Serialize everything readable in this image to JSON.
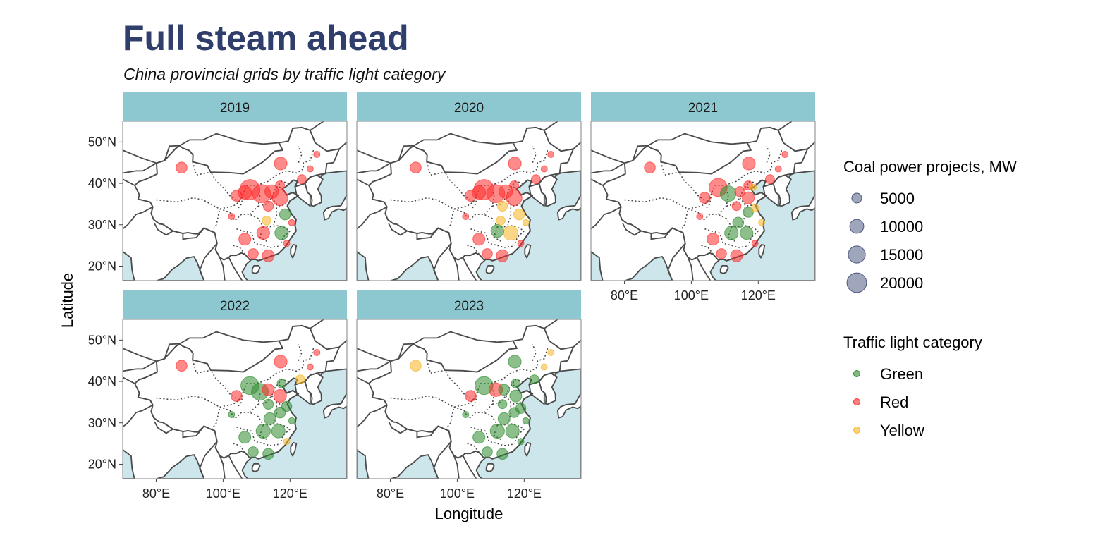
{
  "title": "Full steam ahead",
  "subtitle": "China provincial grids by traffic light category",
  "colors": {
    "title": "#2f3e6b",
    "strip": "#8dc8d0",
    "sea": "#cce6eb",
    "land": "#ffffff",
    "border": "#4a4a4a",
    "size_legend_fill": "#5f6b8f",
    "Green": "#2e8b2e",
    "Red": "#ff2a2a",
    "Yellow": "#f5b522"
  },
  "axes": {
    "x_title": "Longitude",
    "y_title": "Latitude",
    "x_ticks": [
      {
        "value": 80,
        "label": "80°E"
      },
      {
        "value": 100,
        "label": "100°E"
      },
      {
        "value": 120,
        "label": "120°E"
      }
    ],
    "y_ticks": [
      {
        "value": 50,
        "label": "50°N"
      },
      {
        "value": 40,
        "label": "40°N"
      },
      {
        "value": 30,
        "label": "30°N"
      },
      {
        "value": 20,
        "label": "20°N"
      }
    ],
    "xlim": [
      70,
      137
    ],
    "ylim": [
      16.5,
      55
    ]
  },
  "legends": {
    "size": {
      "title": "Coal power projects, MW",
      "entries": [
        {
          "label": "5000",
          "value": 5000
        },
        {
          "label": "10000",
          "value": 10000
        },
        {
          "label": "15000",
          "value": 15000
        },
        {
          "label": "20000",
          "value": 20000
        }
      ]
    },
    "category": {
      "title": "Traffic light category",
      "entries": [
        {
          "label": "Green",
          "key": "Green"
        },
        {
          "label": "Red",
          "key": "Red"
        },
        {
          "label": "Yellow",
          "key": "Yellow"
        }
      ]
    }
  },
  "chart_data": {
    "type": "scatter",
    "subtype": "faceted bubble map",
    "facets": [
      {
        "label": "2019",
        "points": [
          {
            "lon": 87.6,
            "lat": 43.8,
            "mw": 6000,
            "cat": "Red"
          },
          {
            "lon": 108.0,
            "lat": 38.5,
            "mw": 20000,
            "cat": "Red"
          },
          {
            "lon": 111.5,
            "lat": 37.5,
            "mw": 16000,
            "cat": "Red"
          },
          {
            "lon": 104.0,
            "lat": 37.0,
            "mw": 6000,
            "cat": "Red"
          },
          {
            "lon": 106.5,
            "lat": 37.8,
            "mw": 9000,
            "cat": "Red"
          },
          {
            "lon": 114.5,
            "lat": 38.0,
            "mw": 9000,
            "cat": "Red"
          },
          {
            "lon": 117.0,
            "lat": 36.5,
            "mw": 12000,
            "cat": "Red"
          },
          {
            "lon": 118.5,
            "lat": 32.5,
            "mw": 6000,
            "cat": "Green"
          },
          {
            "lon": 113.5,
            "lat": 34.5,
            "mw": 5000,
            "cat": "Red"
          },
          {
            "lon": 117.2,
            "lat": 44.8,
            "mw": 8000,
            "cat": "Red"
          },
          {
            "lon": 117.0,
            "lat": 39.5,
            "mw": 4000,
            "cat": "Red"
          },
          {
            "lon": 123.5,
            "lat": 41.0,
            "mw": 4000,
            "cat": "Red"
          },
          {
            "lon": 126.0,
            "lat": 43.5,
            "mw": 2000,
            "cat": "Red"
          },
          {
            "lon": 128.0,
            "lat": 47.0,
            "mw": 2000,
            "cat": "Red"
          },
          {
            "lon": 120.5,
            "lat": 30.5,
            "mw": 2000,
            "cat": "Red"
          },
          {
            "lon": 113.0,
            "lat": 31.0,
            "mw": 4000,
            "cat": "Yellow"
          },
          {
            "lon": 117.5,
            "lat": 28.0,
            "mw": 9000,
            "cat": "Green"
          },
          {
            "lon": 112.0,
            "lat": 28.0,
            "mw": 8000,
            "cat": "Red"
          },
          {
            "lon": 102.5,
            "lat": 32.0,
            "mw": 2000,
            "cat": "Red"
          },
          {
            "lon": 106.5,
            "lat": 26.5,
            "mw": 7000,
            "cat": "Red"
          },
          {
            "lon": 109.0,
            "lat": 23.0,
            "mw": 5000,
            "cat": "Red"
          },
          {
            "lon": 113.5,
            "lat": 22.5,
            "mw": 7000,
            "cat": "Red"
          },
          {
            "lon": 119.0,
            "lat": 25.5,
            "mw": 2000,
            "cat": "Red"
          }
        ]
      },
      {
        "label": "2020",
        "points": [
          {
            "lon": 87.6,
            "lat": 43.8,
            "mw": 6000,
            "cat": "Red"
          },
          {
            "lon": 108.0,
            "lat": 38.5,
            "mw": 20000,
            "cat": "Red"
          },
          {
            "lon": 111.5,
            "lat": 37.5,
            "mw": 16000,
            "cat": "Red"
          },
          {
            "lon": 104.0,
            "lat": 37.0,
            "mw": 6000,
            "cat": "Red"
          },
          {
            "lon": 106.5,
            "lat": 37.8,
            "mw": 9000,
            "cat": "Red"
          },
          {
            "lon": 114.5,
            "lat": 38.0,
            "mw": 9000,
            "cat": "Red"
          },
          {
            "lon": 117.0,
            "lat": 36.5,
            "mw": 12000,
            "cat": "Red"
          },
          {
            "lon": 118.5,
            "lat": 32.5,
            "mw": 6000,
            "cat": "Yellow"
          },
          {
            "lon": 113.5,
            "lat": 34.5,
            "mw": 5000,
            "cat": "Yellow"
          },
          {
            "lon": 117.2,
            "lat": 44.8,
            "mw": 8000,
            "cat": "Red"
          },
          {
            "lon": 117.0,
            "lat": 39.5,
            "mw": 4000,
            "cat": "Red"
          },
          {
            "lon": 123.5,
            "lat": 41.0,
            "mw": 4000,
            "cat": "Red"
          },
          {
            "lon": 126.0,
            "lat": 43.5,
            "mw": 2000,
            "cat": "Red"
          },
          {
            "lon": 128.0,
            "lat": 47.0,
            "mw": 2000,
            "cat": "Red"
          },
          {
            "lon": 120.5,
            "lat": 30.5,
            "mw": 2000,
            "cat": "Yellow"
          },
          {
            "lon": 113.0,
            "lat": 31.0,
            "mw": 4000,
            "cat": "Yellow"
          },
          {
            "lon": 116.0,
            "lat": 28.0,
            "mw": 10000,
            "cat": "Yellow"
          },
          {
            "lon": 112.0,
            "lat": 28.5,
            "mw": 8000,
            "cat": "Green"
          },
          {
            "lon": 102.5,
            "lat": 32.0,
            "mw": 2000,
            "cat": "Red"
          },
          {
            "lon": 106.5,
            "lat": 26.5,
            "mw": 7000,
            "cat": "Red"
          },
          {
            "lon": 109.0,
            "lat": 23.0,
            "mw": 5000,
            "cat": "Red"
          },
          {
            "lon": 113.5,
            "lat": 22.5,
            "mw": 7000,
            "cat": "Red"
          },
          {
            "lon": 119.0,
            "lat": 25.5,
            "mw": 2000,
            "cat": "Red"
          }
        ]
      },
      {
        "label": "2021",
        "points": [
          {
            "lon": 87.6,
            "lat": 43.8,
            "mw": 6000,
            "cat": "Red"
          },
          {
            "lon": 108.0,
            "lat": 39.0,
            "mw": 16000,
            "cat": "Red"
          },
          {
            "lon": 111.0,
            "lat": 37.5,
            "mw": 12000,
            "cat": "Green"
          },
          {
            "lon": 104.0,
            "lat": 36.5,
            "mw": 6000,
            "cat": "Red"
          },
          {
            "lon": 114.5,
            "lat": 38.0,
            "mw": 5000,
            "cat": "Red"
          },
          {
            "lon": 117.0,
            "lat": 36.5,
            "mw": 7000,
            "cat": "Red"
          },
          {
            "lon": 119.0,
            "lat": 34.0,
            "mw": 3000,
            "cat": "Yellow"
          },
          {
            "lon": 117.0,
            "lat": 33.0,
            "mw": 5000,
            "cat": "Green"
          },
          {
            "lon": 113.5,
            "lat": 34.5,
            "mw": 4000,
            "cat": "Red"
          },
          {
            "lon": 117.2,
            "lat": 44.8,
            "mw": 8000,
            "cat": "Red"
          },
          {
            "lon": 117.0,
            "lat": 39.5,
            "mw": 4000,
            "cat": "Red"
          },
          {
            "lon": 118.5,
            "lat": 39.0,
            "mw": 2000,
            "cat": "Yellow"
          },
          {
            "lon": 123.5,
            "lat": 41.0,
            "mw": 4000,
            "cat": "Red"
          },
          {
            "lon": 126.0,
            "lat": 43.5,
            "mw": 2000,
            "cat": "Red"
          },
          {
            "lon": 128.0,
            "lat": 47.0,
            "mw": 2000,
            "cat": "Red"
          },
          {
            "lon": 121.0,
            "lat": 30.5,
            "mw": 2000,
            "cat": "Yellow"
          },
          {
            "lon": 114.0,
            "lat": 30.5,
            "mw": 6000,
            "cat": "Green"
          },
          {
            "lon": 112.0,
            "lat": 28.0,
            "mw": 9000,
            "cat": "Green"
          },
          {
            "lon": 116.5,
            "lat": 28.0,
            "mw": 8000,
            "cat": "Green"
          },
          {
            "lon": 102.5,
            "lat": 32.0,
            "mw": 2000,
            "cat": "Red"
          },
          {
            "lon": 106.5,
            "lat": 26.5,
            "mw": 7000,
            "cat": "Red"
          },
          {
            "lon": 109.0,
            "lat": 23.0,
            "mw": 5000,
            "cat": "Red"
          },
          {
            "lon": 113.5,
            "lat": 22.5,
            "mw": 7000,
            "cat": "Red"
          },
          {
            "lon": 119.0,
            "lat": 25.5,
            "mw": 2000,
            "cat": "Red"
          }
        ]
      },
      {
        "label": "2022",
        "points": [
          {
            "lon": 87.6,
            "lat": 43.8,
            "mw": 6000,
            "cat": "Red"
          },
          {
            "lon": 108.0,
            "lat": 39.0,
            "mw": 16000,
            "cat": "Green"
          },
          {
            "lon": 111.0,
            "lat": 37.5,
            "mw": 14000,
            "cat": "Green"
          },
          {
            "lon": 104.0,
            "lat": 36.5,
            "mw": 6000,
            "cat": "Red"
          },
          {
            "lon": 113.5,
            "lat": 38.0,
            "mw": 7000,
            "cat": "Red"
          },
          {
            "lon": 117.0,
            "lat": 36.5,
            "mw": 8000,
            "cat": "Red"
          },
          {
            "lon": 119.0,
            "lat": 34.0,
            "mw": 5000,
            "cat": "Green"
          },
          {
            "lon": 117.0,
            "lat": 32.5,
            "mw": 6000,
            "cat": "Green"
          },
          {
            "lon": 113.5,
            "lat": 34.5,
            "mw": 5000,
            "cat": "Green"
          },
          {
            "lon": 117.2,
            "lat": 44.8,
            "mw": 8000,
            "cat": "Red"
          },
          {
            "lon": 117.5,
            "lat": 39.5,
            "mw": 4000,
            "cat": "Green"
          },
          {
            "lon": 123.0,
            "lat": 40.5,
            "mw": 4000,
            "cat": "Yellow"
          },
          {
            "lon": 126.0,
            "lat": 43.5,
            "mw": 2000,
            "cat": "Red"
          },
          {
            "lon": 128.0,
            "lat": 47.0,
            "mw": 2000,
            "cat": "Red"
          },
          {
            "lon": 120.5,
            "lat": 30.5,
            "mw": 2000,
            "cat": "Green"
          },
          {
            "lon": 114.0,
            "lat": 31.0,
            "mw": 7000,
            "cat": "Green"
          },
          {
            "lon": 112.0,
            "lat": 28.0,
            "mw": 10000,
            "cat": "Green"
          },
          {
            "lon": 116.5,
            "lat": 28.0,
            "mw": 9000,
            "cat": "Green"
          },
          {
            "lon": 102.5,
            "lat": 32.0,
            "mw": 2000,
            "cat": "Green"
          },
          {
            "lon": 106.5,
            "lat": 26.5,
            "mw": 7000,
            "cat": "Green"
          },
          {
            "lon": 109.0,
            "lat": 23.0,
            "mw": 5000,
            "cat": "Green"
          },
          {
            "lon": 113.5,
            "lat": 22.5,
            "mw": 6000,
            "cat": "Green"
          },
          {
            "lon": 119.0,
            "lat": 25.5,
            "mw": 2000,
            "cat": "Yellow"
          }
        ]
      },
      {
        "label": "2023",
        "points": [
          {
            "lon": 87.6,
            "lat": 43.8,
            "mw": 6000,
            "cat": "Yellow"
          },
          {
            "lon": 108.0,
            "lat": 39.0,
            "mw": 16000,
            "cat": "Green"
          },
          {
            "lon": 111.5,
            "lat": 38.0,
            "mw": 9000,
            "cat": "Red"
          },
          {
            "lon": 104.0,
            "lat": 36.5,
            "mw": 6000,
            "cat": "Red"
          },
          {
            "lon": 114.0,
            "lat": 38.0,
            "mw": 6000,
            "cat": "Green"
          },
          {
            "lon": 117.5,
            "lat": 36.5,
            "mw": 7000,
            "cat": "Green"
          },
          {
            "lon": 119.0,
            "lat": 33.5,
            "mw": 5000,
            "cat": "Green"
          },
          {
            "lon": 117.0,
            "lat": 32.5,
            "mw": 5000,
            "cat": "Green"
          },
          {
            "lon": 113.5,
            "lat": 34.5,
            "mw": 4000,
            "cat": "Green"
          },
          {
            "lon": 117.2,
            "lat": 44.8,
            "mw": 8000,
            "cat": "Green"
          },
          {
            "lon": 117.5,
            "lat": 39.5,
            "mw": 4000,
            "cat": "Green"
          },
          {
            "lon": 123.0,
            "lat": 40.5,
            "mw": 4000,
            "cat": "Green"
          },
          {
            "lon": 126.0,
            "lat": 43.5,
            "mw": 2000,
            "cat": "Yellow"
          },
          {
            "lon": 128.0,
            "lat": 47.0,
            "mw": 2000,
            "cat": "Yellow"
          },
          {
            "lon": 120.5,
            "lat": 30.5,
            "mw": 2000,
            "cat": "Green"
          },
          {
            "lon": 114.0,
            "lat": 31.0,
            "mw": 7000,
            "cat": "Green"
          },
          {
            "lon": 112.0,
            "lat": 28.0,
            "mw": 10000,
            "cat": "Green"
          },
          {
            "lon": 116.5,
            "lat": 28.0,
            "mw": 9000,
            "cat": "Green"
          },
          {
            "lon": 102.5,
            "lat": 32.0,
            "mw": 2000,
            "cat": "Green"
          },
          {
            "lon": 106.5,
            "lat": 26.5,
            "mw": 7000,
            "cat": "Green"
          },
          {
            "lon": 109.0,
            "lat": 23.0,
            "mw": 5000,
            "cat": "Green"
          },
          {
            "lon": 113.5,
            "lat": 22.5,
            "mw": 6000,
            "cat": "Green"
          },
          {
            "lon": 119.0,
            "lat": 25.5,
            "mw": 2000,
            "cat": "Green"
          }
        ]
      }
    ]
  }
}
